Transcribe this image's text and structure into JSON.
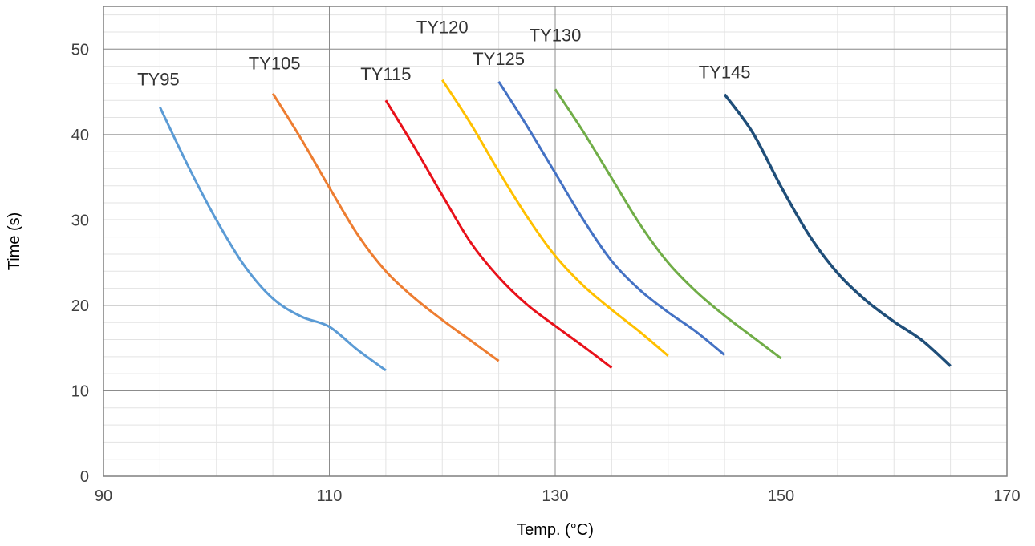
{
  "chart_data": {
    "type": "line",
    "title": "",
    "xlabel": "Temp. (°C)",
    "ylabel": "Time (s)",
    "xlim": [
      90,
      170
    ],
    "ylim": [
      0,
      55
    ],
    "x_major_ticks": [
      90,
      110,
      130,
      150,
      170
    ],
    "y_major_ticks": [
      0,
      10,
      20,
      30,
      40,
      50
    ],
    "x_minor_step": 5,
    "y_minor_step": 2,
    "grid": true,
    "legend": "none",
    "series": [
      {
        "name": "TY95",
        "color": "#5B9BD5",
        "points": [
          [
            95,
            43.2
          ],
          [
            97.5,
            36.3
          ],
          [
            100,
            30.0
          ],
          [
            102.5,
            24.6
          ],
          [
            105,
            20.8
          ],
          [
            107.5,
            18.7
          ],
          [
            110,
            17.5
          ],
          [
            112.5,
            14.8
          ],
          [
            115,
            12.4
          ]
        ]
      },
      {
        "name": "TY105",
        "color": "#ED7D31",
        "points": [
          [
            105,
            44.8
          ],
          [
            107.5,
            39.5
          ],
          [
            110,
            33.8
          ],
          [
            112.5,
            28.3
          ],
          [
            115,
            24.0
          ],
          [
            117.5,
            20.9
          ],
          [
            120,
            18.3
          ],
          [
            122.5,
            15.9
          ],
          [
            125,
            13.5
          ]
        ]
      },
      {
        "name": "TY115",
        "color": "#E8111A",
        "points": [
          [
            115,
            44.0
          ],
          [
            117.5,
            38.6
          ],
          [
            120,
            32.9
          ],
          [
            122.5,
            27.4
          ],
          [
            125,
            23.3
          ],
          [
            127.5,
            20.1
          ],
          [
            130,
            17.6
          ],
          [
            132.5,
            15.2
          ],
          [
            135,
            12.7
          ]
        ]
      },
      {
        "name": "TY120",
        "color": "#FFC000",
        "points": [
          [
            120,
            46.4
          ],
          [
            122.5,
            41.3
          ],
          [
            125,
            35.7
          ],
          [
            127.5,
            30.4
          ],
          [
            130,
            25.8
          ],
          [
            132.5,
            22.3
          ],
          [
            135,
            19.5
          ],
          [
            137.5,
            16.9
          ],
          [
            140,
            14.1
          ]
        ]
      },
      {
        "name": "TY125",
        "color": "#4472C4",
        "points": [
          [
            125,
            46.2
          ],
          [
            127.5,
            41.0
          ],
          [
            130,
            35.5
          ],
          [
            132.5,
            30.0
          ],
          [
            135,
            25.2
          ],
          [
            137.5,
            21.8
          ],
          [
            140,
            19.2
          ],
          [
            142.5,
            16.9
          ],
          [
            145,
            14.2
          ]
        ]
      },
      {
        "name": "TY130",
        "color": "#70AD47",
        "points": [
          [
            130,
            45.3
          ],
          [
            132.5,
            40.3
          ],
          [
            135,
            34.9
          ],
          [
            137.5,
            29.5
          ],
          [
            140,
            25.0
          ],
          [
            142.5,
            21.6
          ],
          [
            145,
            18.8
          ],
          [
            147.5,
            16.3
          ],
          [
            150,
            13.8
          ]
        ]
      },
      {
        "name": "TY145",
        "color": "#1F4E79",
        "points": [
          [
            145,
            44.7
          ],
          [
            147.5,
            40.2
          ],
          [
            150,
            33.9
          ],
          [
            152.5,
            28.2
          ],
          [
            155,
            23.8
          ],
          [
            157.5,
            20.6
          ],
          [
            160,
            18.1
          ],
          [
            162.5,
            15.9
          ],
          [
            165,
            12.9
          ]
        ]
      }
    ]
  }
}
